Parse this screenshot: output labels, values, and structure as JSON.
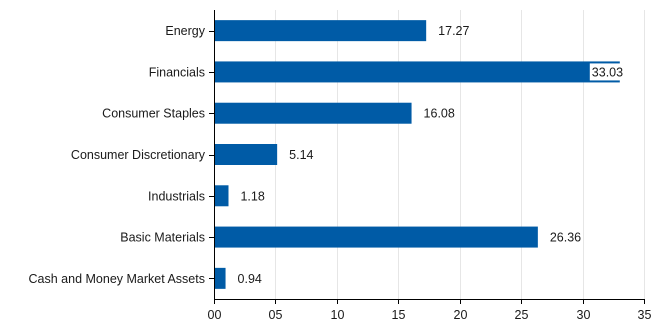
{
  "chart_data": {
    "type": "bar",
    "orientation": "horizontal",
    "categories": [
      "Energy",
      "Financials",
      "Consumer Staples",
      "Consumer Discretionary",
      "Industrials",
      "Basic Materials",
      "Cash and Money Market Assets"
    ],
    "values": [
      17.27,
      33.03,
      16.08,
      5.14,
      1.18,
      26.36,
      0.94
    ],
    "value_labels": [
      "17.27",
      "33.03",
      "16.08",
      "5.14",
      "1.18",
      "26.36",
      "0.94"
    ],
    "x_ticks": [
      "00",
      "05",
      "10",
      "15",
      "20",
      "25",
      "30",
      "35"
    ],
    "xlim": [
      0,
      35
    ],
    "grid": "vertical",
    "bar_color": "#005BA6",
    "title": "",
    "xlabel": "",
    "ylabel": ""
  }
}
